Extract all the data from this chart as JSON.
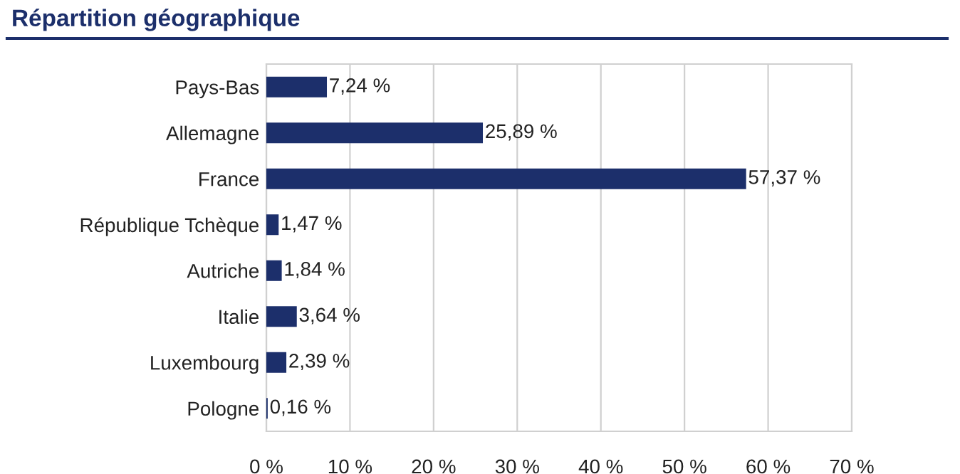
{
  "chart_data": {
    "type": "bar",
    "title": "Répartition géographique",
    "orientation": "horizontal",
    "categories": [
      "Pays-Bas",
      "Allemagne",
      "France",
      "République Tchèque",
      "Autriche",
      "Italie",
      "Luxembourg",
      "Pologne"
    ],
    "values": [
      7.24,
      25.89,
      57.37,
      1.47,
      1.84,
      3.64,
      2.39,
      0.16
    ],
    "value_labels": [
      "7,24 %",
      "25,89 %",
      "57,37 %",
      "1,47 %",
      "1,84 %",
      "3,64 %",
      "2,39 %",
      "0,16 %"
    ],
    "color": "#1c2f6b",
    "xlim": [
      0,
      70
    ],
    "xticks": [
      {
        "value": 0,
        "label": "0 %"
      },
      {
        "value": 10,
        "label": "10 %"
      },
      {
        "value": 20,
        "label": "20 %"
      },
      {
        "value": 30,
        "label": "30 %"
      },
      {
        "value": 40,
        "label": "40 %"
      },
      {
        "value": 50,
        "label": "50 %"
      },
      {
        "value": 60,
        "label": "60 %"
      },
      {
        "value": 70,
        "label": "70 %"
      }
    ],
    "grid": "x",
    "legend": false
  }
}
